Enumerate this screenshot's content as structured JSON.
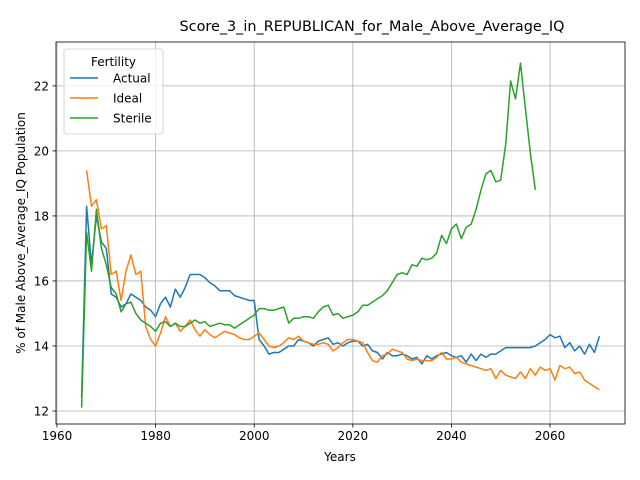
{
  "chart_data": {
    "type": "line",
    "title": "Score_3_in_REPUBLICAN_for_Male_Above_Average_IQ",
    "xlabel": "Years",
    "ylabel": "% of Male Above_Average_IQ Population",
    "xlim": [
      1959.8,
      2075.2
    ],
    "ylim": [
      11.6,
      23.35
    ],
    "xticks": [
      1960,
      1980,
      2000,
      2020,
      2040,
      2060
    ],
    "yticks": [
      12,
      14,
      16,
      18,
      20,
      22
    ],
    "grid": true,
    "legend": {
      "title": "Fertility",
      "position": "top-left"
    },
    "series": [
      {
        "name": "Actual",
        "color": "#1f77b4",
        "points": [
          [
            1965,
            12.4
          ],
          [
            1966,
            18.3
          ],
          [
            1967,
            16.5
          ],
          [
            1968,
            18.0
          ],
          [
            1969,
            17.2
          ],
          [
            1970,
            17.0
          ],
          [
            1971,
            15.6
          ],
          [
            1972,
            15.5
          ],
          [
            1973,
            15.2
          ],
          [
            1974,
            15.3
          ],
          [
            1975,
            15.6
          ],
          [
            1976,
            15.5
          ],
          [
            1977,
            15.4
          ],
          [
            1978,
            15.2
          ],
          [
            1979,
            15.1
          ],
          [
            1980,
            14.9
          ],
          [
            1981,
            15.3
          ],
          [
            1982,
            15.5
          ],
          [
            1983,
            15.2
          ],
          [
            1984,
            15.75
          ],
          [
            1985,
            15.5
          ],
          [
            1986,
            15.8
          ],
          [
            1987,
            16.2
          ],
          [
            1988,
            16.2
          ],
          [
            1989,
            16.2
          ],
          [
            1990,
            16.1
          ],
          [
            1991,
            15.95
          ],
          [
            1992,
            15.85
          ],
          [
            1993,
            15.7
          ],
          [
            1994,
            15.7
          ],
          [
            1995,
            15.7
          ],
          [
            1996,
            15.55
          ],
          [
            1997,
            15.5
          ],
          [
            1998,
            15.45
          ],
          [
            1999,
            15.4
          ],
          [
            2000,
            15.4
          ],
          [
            2001,
            14.2
          ],
          [
            2002,
            14.0
          ],
          [
            2003,
            13.75
          ],
          [
            2004,
            13.8
          ],
          [
            2005,
            13.8
          ],
          [
            2006,
            13.9
          ],
          [
            2007,
            14.0
          ],
          [
            2008,
            14.0
          ],
          [
            2009,
            14.2
          ],
          [
            2010,
            14.15
          ],
          [
            2011,
            14.1
          ],
          [
            2012,
            14.0
          ],
          [
            2013,
            14.15
          ],
          [
            2014,
            14.2
          ],
          [
            2015,
            14.25
          ],
          [
            2016,
            14.05
          ],
          [
            2017,
            14.1
          ],
          [
            2018,
            14.0
          ],
          [
            2019,
            14.1
          ],
          [
            2020,
            14.15
          ],
          [
            2021,
            14.15
          ],
          [
            2022,
            14.0
          ],
          [
            2023,
            14.05
          ],
          [
            2024,
            13.85
          ],
          [
            2025,
            13.8
          ],
          [
            2026,
            13.6
          ],
          [
            2027,
            13.8
          ],
          [
            2028,
            13.7
          ],
          [
            2029,
            13.7
          ],
          [
            2030,
            13.75
          ],
          [
            2031,
            13.7
          ],
          [
            2032,
            13.6
          ],
          [
            2033,
            13.65
          ],
          [
            2034,
            13.45
          ],
          [
            2035,
            13.7
          ],
          [
            2036,
            13.6
          ],
          [
            2037,
            13.7
          ],
          [
            2038,
            13.75
          ],
          [
            2039,
            13.8
          ],
          [
            2040,
            13.7
          ],
          [
            2041,
            13.65
          ],
          [
            2042,
            13.7
          ],
          [
            2043,
            13.5
          ],
          [
            2044,
            13.75
          ],
          [
            2045,
            13.55
          ],
          [
            2046,
            13.75
          ],
          [
            2047,
            13.65
          ],
          [
            2048,
            13.75
          ],
          [
            2049,
            13.75
          ],
          [
            2050,
            13.85
          ],
          [
            2051,
            13.95
          ],
          [
            2052,
            13.95
          ],
          [
            2053,
            13.95
          ],
          [
            2054,
            13.95
          ],
          [
            2055,
            13.95
          ],
          [
            2056,
            13.95
          ],
          [
            2057,
            14.0
          ],
          [
            2058,
            14.1
          ],
          [
            2059,
            14.2
          ],
          [
            2060,
            14.35
          ],
          [
            2061,
            14.25
          ],
          [
            2062,
            14.3
          ],
          [
            2063,
            13.95
          ],
          [
            2064,
            14.1
          ],
          [
            2065,
            13.85
          ],
          [
            2066,
            14.0
          ],
          [
            2067,
            13.75
          ],
          [
            2068,
            14.05
          ],
          [
            2069,
            13.8
          ],
          [
            2070,
            14.3
          ]
        ]
      },
      {
        "name": "Ideal",
        "color": "#ff7f0e",
        "points": [
          [
            1966,
            19.4
          ],
          [
            1967,
            18.3
          ],
          [
            1968,
            18.5
          ],
          [
            1969,
            17.6
          ],
          [
            1970,
            17.7
          ],
          [
            1971,
            16.2
          ],
          [
            1972,
            16.3
          ],
          [
            1973,
            15.4
          ],
          [
            1974,
            16.3
          ],
          [
            1975,
            16.8
          ],
          [
            1976,
            16.2
          ],
          [
            1977,
            16.3
          ],
          [
            1978,
            14.6
          ],
          [
            1979,
            14.2
          ],
          [
            1980,
            14.0
          ],
          [
            1981,
            14.4
          ],
          [
            1982,
            14.9
          ],
          [
            1983,
            14.6
          ],
          [
            1984,
            14.7
          ],
          [
            1985,
            14.45
          ],
          [
            1986,
            14.6
          ],
          [
            1987,
            14.8
          ],
          [
            1988,
            14.5
          ],
          [
            1989,
            14.3
          ],
          [
            1990,
            14.5
          ],
          [
            1991,
            14.35
          ],
          [
            1992,
            14.25
          ],
          [
            1993,
            14.35
          ],
          [
            1994,
            14.45
          ],
          [
            1995,
            14.4
          ],
          [
            1996,
            14.35
          ],
          [
            1997,
            14.25
          ],
          [
            1998,
            14.2
          ],
          [
            1999,
            14.2
          ],
          [
            2000,
            14.3
          ],
          [
            2001,
            14.4
          ],
          [
            2002,
            14.2
          ],
          [
            2003,
            14.0
          ],
          [
            2004,
            13.95
          ],
          [
            2005,
            14.0
          ],
          [
            2006,
            14.1
          ],
          [
            2007,
            14.25
          ],
          [
            2008,
            14.2
          ],
          [
            2009,
            14.3
          ],
          [
            2010,
            14.15
          ],
          [
            2011,
            14.1
          ],
          [
            2012,
            14.05
          ],
          [
            2013,
            14.05
          ],
          [
            2014,
            14.1
          ],
          [
            2015,
            14.05
          ],
          [
            2016,
            13.85
          ],
          [
            2017,
            13.95
          ],
          [
            2018,
            14.1
          ],
          [
            2019,
            14.2
          ],
          [
            2020,
            14.2
          ],
          [
            2021,
            14.15
          ],
          [
            2022,
            14.1
          ],
          [
            2023,
            13.8
          ],
          [
            2024,
            13.55
          ],
          [
            2025,
            13.5
          ],
          [
            2026,
            13.7
          ],
          [
            2027,
            13.75
          ],
          [
            2028,
            13.9
          ],
          [
            2029,
            13.85
          ],
          [
            2030,
            13.8
          ],
          [
            2031,
            13.6
          ],
          [
            2032,
            13.55
          ],
          [
            2033,
            13.6
          ],
          [
            2034,
            13.55
          ],
          [
            2035,
            13.55
          ],
          [
            2036,
            13.55
          ],
          [
            2037,
            13.65
          ],
          [
            2038,
            13.8
          ],
          [
            2039,
            13.6
          ],
          [
            2040,
            13.6
          ],
          [
            2041,
            13.65
          ],
          [
            2042,
            13.5
          ],
          [
            2043,
            13.45
          ],
          [
            2044,
            13.4
          ],
          [
            2045,
            13.35
          ],
          [
            2046,
            13.3
          ],
          [
            2047,
            13.25
          ],
          [
            2048,
            13.3
          ],
          [
            2049,
            13.0
          ],
          [
            2050,
            13.25
          ],
          [
            2051,
            13.1
          ],
          [
            2052,
            13.05
          ],
          [
            2053,
            13.0
          ],
          [
            2054,
            13.2
          ],
          [
            2055,
            13.0
          ],
          [
            2056,
            13.3
          ],
          [
            2057,
            13.1
          ],
          [
            2058,
            13.35
          ],
          [
            2059,
            13.25
          ],
          [
            2060,
            13.3
          ],
          [
            2061,
            12.95
          ],
          [
            2062,
            13.4
          ],
          [
            2063,
            13.3
          ],
          [
            2064,
            13.35
          ],
          [
            2065,
            13.15
          ],
          [
            2066,
            13.2
          ],
          [
            2067,
            12.95
          ],
          [
            2068,
            12.85
          ],
          [
            2069,
            12.75
          ],
          [
            2070,
            12.65
          ]
        ]
      },
      {
        "name": "Sterile",
        "color": "#2ca02c",
        "points": [
          [
            1965,
            12.1
          ],
          [
            1966,
            17.5
          ],
          [
            1967,
            16.3
          ],
          [
            1968,
            18.2
          ],
          [
            1969,
            17.0
          ],
          [
            1970,
            16.5
          ],
          [
            1971,
            15.8
          ],
          [
            1972,
            15.6
          ],
          [
            1973,
            15.05
          ],
          [
            1974,
            15.3
          ],
          [
            1975,
            15.35
          ],
          [
            1976,
            15.0
          ],
          [
            1977,
            14.8
          ],
          [
            1978,
            14.7
          ],
          [
            1979,
            14.6
          ],
          [
            1980,
            14.45
          ],
          [
            1981,
            14.7
          ],
          [
            1982,
            14.75
          ],
          [
            1983,
            14.6
          ],
          [
            1984,
            14.7
          ],
          [
            1985,
            14.6
          ],
          [
            1986,
            14.6
          ],
          [
            1987,
            14.7
          ],
          [
            1988,
            14.8
          ],
          [
            1989,
            14.7
          ],
          [
            1990,
            14.75
          ],
          [
            1991,
            14.6
          ],
          [
            1992,
            14.65
          ],
          [
            1993,
            14.7
          ],
          [
            1994,
            14.65
          ],
          [
            1995,
            14.65
          ],
          [
            1996,
            14.55
          ],
          [
            1997,
            14.65
          ],
          [
            1998,
            14.75
          ],
          [
            1999,
            14.85
          ],
          [
            2000,
            14.95
          ],
          [
            2001,
            15.15
          ],
          [
            2002,
            15.15
          ],
          [
            2003,
            15.1
          ],
          [
            2004,
            15.1
          ],
          [
            2005,
            15.15
          ],
          [
            2006,
            15.2
          ],
          [
            2007,
            14.7
          ],
          [
            2008,
            14.85
          ],
          [
            2009,
            14.85
          ],
          [
            2010,
            14.9
          ],
          [
            2011,
            14.9
          ],
          [
            2012,
            14.85
          ],
          [
            2013,
            15.05
          ],
          [
            2014,
            15.2
          ],
          [
            2015,
            15.25
          ],
          [
            2016,
            14.95
          ],
          [
            2017,
            15.0
          ],
          [
            2018,
            14.85
          ],
          [
            2019,
            14.9
          ],
          [
            2020,
            14.95
          ],
          [
            2021,
            15.05
          ],
          [
            2022,
            15.25
          ],
          [
            2023,
            15.25
          ],
          [
            2024,
            15.35
          ],
          [
            2025,
            15.45
          ],
          [
            2026,
            15.55
          ],
          [
            2027,
            15.7
          ],
          [
            2028,
            15.95
          ],
          [
            2029,
            16.2
          ],
          [
            2030,
            16.25
          ],
          [
            2031,
            16.2
          ],
          [
            2032,
            16.5
          ],
          [
            2033,
            16.45
          ],
          [
            2034,
            16.7
          ],
          [
            2035,
            16.65
          ],
          [
            2036,
            16.7
          ],
          [
            2037,
            16.85
          ],
          [
            2038,
            17.4
          ],
          [
            2039,
            17.15
          ],
          [
            2040,
            17.6
          ],
          [
            2041,
            17.75
          ],
          [
            2042,
            17.3
          ],
          [
            2043,
            17.65
          ],
          [
            2044,
            17.75
          ],
          [
            2045,
            18.2
          ],
          [
            2046,
            18.8
          ],
          [
            2047,
            19.3
          ],
          [
            2048,
            19.4
          ],
          [
            2049,
            19.05
          ],
          [
            2050,
            19.1
          ],
          [
            2051,
            20.2
          ],
          [
            2052,
            22.15
          ],
          [
            2053,
            21.6
          ],
          [
            2054,
            22.7
          ],
          [
            2055,
            21.3
          ],
          [
            2056,
            19.95
          ],
          [
            2057,
            18.8
          ]
        ]
      }
    ]
  }
}
